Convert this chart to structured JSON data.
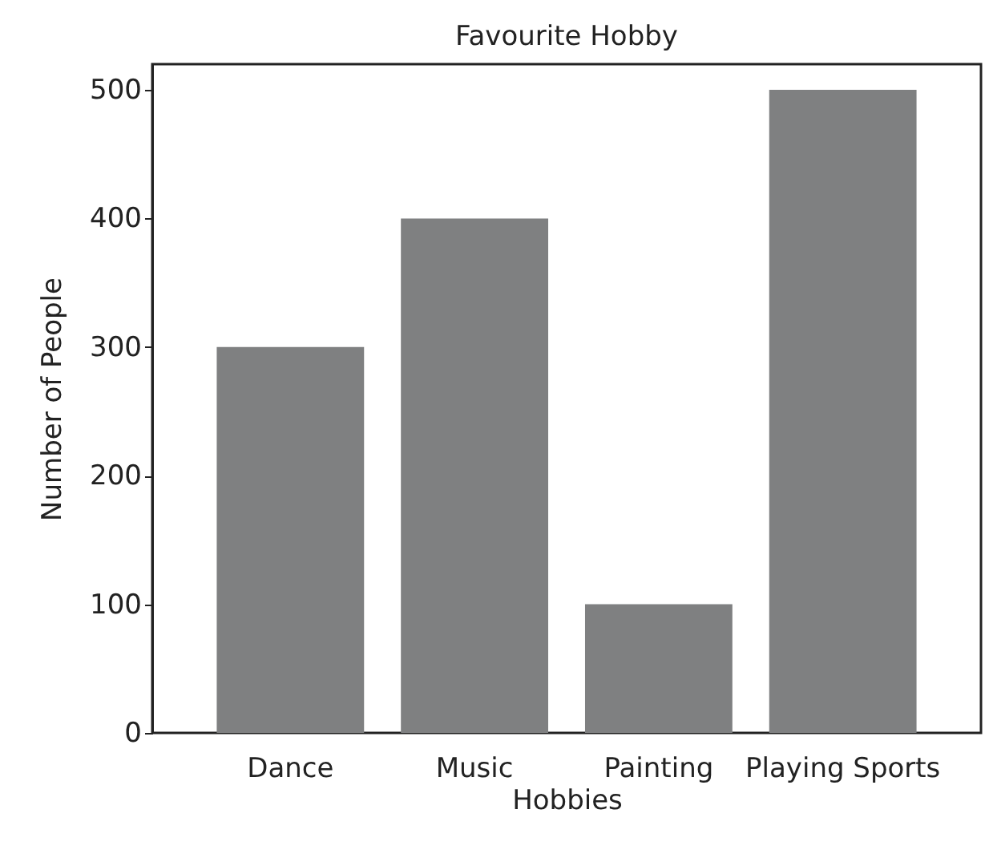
{
  "chart_data": {
    "type": "bar",
    "title": "Favourite Hobby",
    "xlabel": "Hobbies",
    "ylabel": "Number of People",
    "categories": [
      "Dance",
      "Music",
      "Painting",
      "Playing Sports"
    ],
    "values": [
      300,
      400,
      100,
      500
    ],
    "color": "#7f8081",
    "ylim": [
      0,
      520
    ],
    "yticks": [
      0,
      100,
      200,
      300,
      400,
      500
    ],
    "grid": false
  }
}
